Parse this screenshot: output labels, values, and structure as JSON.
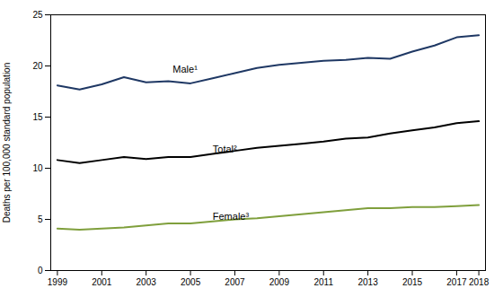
{
  "chart_data": {
    "type": "line",
    "x": [
      1999,
      2000,
      2001,
      2002,
      2003,
      2004,
      2005,
      2006,
      2007,
      2008,
      2009,
      2010,
      2011,
      2012,
      2013,
      2014,
      2015,
      2016,
      2017,
      2018
    ],
    "series": [
      {
        "name": "Male¹",
        "color": "#1f3864",
        "values": [
          18.1,
          17.7,
          18.2,
          18.9,
          18.4,
          18.5,
          18.3,
          18.8,
          19.3,
          19.8,
          20.1,
          20.3,
          20.5,
          20.6,
          20.8,
          20.7,
          21.4,
          22.0,
          22.8,
          23.0
        ]
      },
      {
        "name": "Total²",
        "color": "#000000",
        "values": [
          10.8,
          10.5,
          10.8,
          11.1,
          10.9,
          11.1,
          11.1,
          11.4,
          11.7,
          12.0,
          12.2,
          12.4,
          12.6,
          12.9,
          13.0,
          13.4,
          13.7,
          14.0,
          14.4,
          14.6
        ]
      },
      {
        "name": "Female³",
        "color": "#7f9f3c",
        "values": [
          4.1,
          4.0,
          4.1,
          4.2,
          4.4,
          4.6,
          4.6,
          4.8,
          5.0,
          5.1,
          5.3,
          5.5,
          5.7,
          5.9,
          6.1,
          6.1,
          6.2,
          6.2,
          6.3,
          6.4
        ]
      }
    ],
    "annotations": [
      {
        "text": "Male¹",
        "x": 2004.2,
        "y": 19.3
      },
      {
        "text": "Total²",
        "x": 2006.0,
        "y": 11.55
      },
      {
        "text": "Female³",
        "x": 2006.0,
        "y": 4.95
      }
    ],
    "ylabel": "Deaths per 100,000 standard population",
    "xlim": [
      1998.7,
      2018.3
    ],
    "xticks": [
      1999,
      2001,
      2003,
      2005,
      2007,
      2009,
      2011,
      2013,
      2015,
      2017,
      2018
    ],
    "ylim": [
      0,
      25
    ],
    "yticks": [
      0,
      5,
      10,
      15,
      20,
      25
    ],
    "grid": false
  }
}
